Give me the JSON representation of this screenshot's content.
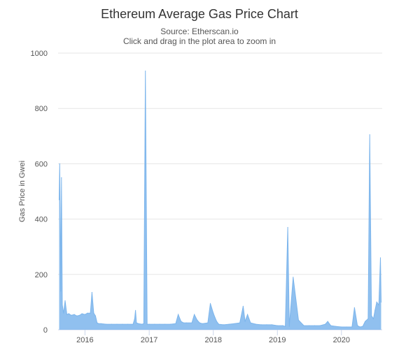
{
  "chart_data": {
    "type": "area",
    "title": "Ethereum Average Gas Price Chart",
    "subtitle": "Source: Etherscan.io",
    "instruction": "Click and drag in the plot area to zoom in",
    "xlabel": "",
    "ylabel": "Gas Price in Gwei",
    "ylim": [
      0,
      1000
    ],
    "y_ticks": [
      "0",
      "200",
      "400",
      "600",
      "800",
      "1000"
    ],
    "x_ticks": [
      "2016",
      "2017",
      "2018",
      "2019",
      "2020"
    ],
    "x_range": [
      "2015-08",
      "2020-08"
    ],
    "grid": true,
    "color": "#7cb5ec",
    "series": [
      {
        "x": [
          "2015-08-07",
          "2015-08-10",
          "2015-08-13",
          "2015-08-16",
          "2015-08-20",
          "2015-08-25",
          "2015-09-01",
          "2015-09-10",
          "2015-09-20",
          "2015-10-01",
          "2015-10-15",
          "2015-11-01",
          "2015-11-15",
          "2015-12-01",
          "2015-12-15",
          "2016-01-01",
          "2016-01-15",
          "2016-02-01",
          "2016-02-10",
          "2016-02-20",
          "2016-03-01",
          "2016-03-10",
          "2016-03-20",
          "2016-04-01",
          "2016-05-01",
          "2016-06-01",
          "2016-07-01",
          "2016-08-01",
          "2016-09-01",
          "2016-10-01",
          "2016-10-10",
          "2016-10-15",
          "2016-10-20",
          "2016-11-01",
          "2016-11-20",
          "2016-12-01",
          "2016-12-10",
          "2016-12-20",
          "2017-01-01",
          "2017-02-01",
          "2017-03-01",
          "2017-04-01",
          "2017-05-01",
          "2017-06-01",
          "2017-06-15",
          "2017-07-01",
          "2017-07-15",
          "2017-08-01",
          "2017-09-01",
          "2017-09-15",
          "2017-10-01",
          "2017-10-15",
          "2017-11-01",
          "2017-12-01",
          "2017-12-15",
          "2018-01-01",
          "2018-01-10",
          "2018-01-20",
          "2018-02-01",
          "2018-03-01",
          "2018-04-01",
          "2018-05-01",
          "2018-06-01",
          "2018-06-20",
          "2018-07-01",
          "2018-07-15",
          "2018-08-01",
          "2018-09-01",
          "2018-10-01",
          "2018-11-01",
          "2018-12-01",
          "2019-01-01",
          "2019-02-01",
          "2019-02-15",
          "2019-03-01",
          "2019-03-10",
          "2019-04-01",
          "2019-05-01",
          "2019-06-01",
          "2019-07-01",
          "2019-08-01",
          "2019-09-01",
          "2019-10-01",
          "2019-10-15",
          "2019-11-01",
          "2019-12-01",
          "2020-01-01",
          "2020-02-01",
          "2020-03-01",
          "2020-03-15",
          "2020-04-01",
          "2020-04-15",
          "2020-05-01",
          "2020-05-15",
          "2020-06-01",
          "2020-06-10",
          "2020-06-20",
          "2020-07-01",
          "2020-07-10",
          "2020-07-20",
          "2020-08-01",
          "2020-08-10",
          "2020-08-14"
        ],
        "values": [
          470,
          600,
          440,
          140,
          550,
          90,
          60,
          105,
          55,
          58,
          52,
          55,
          50,
          52,
          58,
          55,
          60,
          60,
          135,
          60,
          50,
          25,
          22,
          22,
          20,
          20,
          20,
          20,
          20,
          20,
          40,
          70,
          25,
          22,
          20,
          22,
          935,
          20,
          20,
          20,
          20,
          20,
          20,
          22,
          55,
          30,
          25,
          25,
          25,
          55,
          35,
          25,
          22,
          25,
          95,
          60,
          45,
          30,
          20,
          18,
          20,
          22,
          25,
          85,
          30,
          55,
          25,
          20,
          18,
          18,
          18,
          15,
          15,
          12,
          370,
          12,
          190,
          35,
          15,
          15,
          15,
          15,
          20,
          30,
          15,
          12,
          10,
          10,
          10,
          80,
          15,
          10,
          12,
          30,
          40,
          705,
          50,
          40,
          70,
          100,
          90,
          260,
          100
        ]
      }
    ]
  }
}
